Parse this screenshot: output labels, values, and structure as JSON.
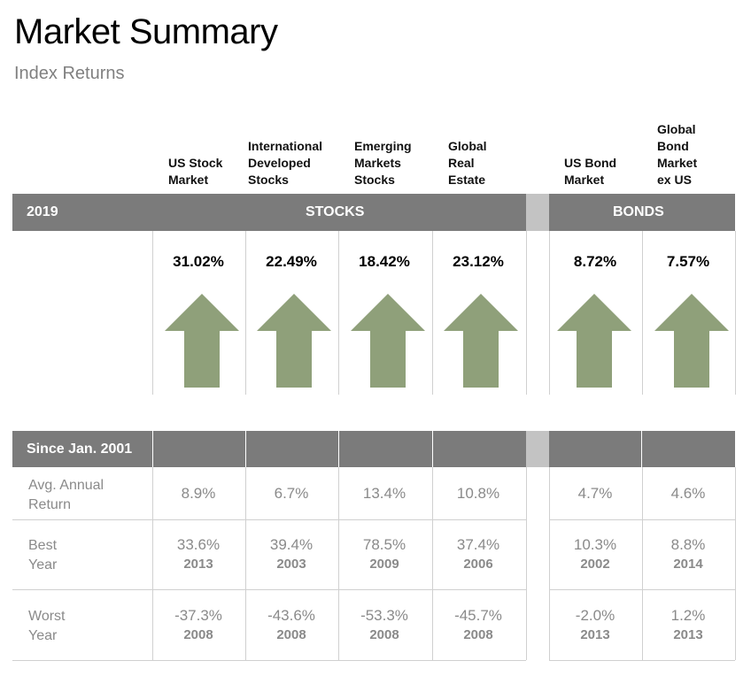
{
  "header": {
    "title": "Market Summary",
    "subtitle": "Index Returns"
  },
  "columns": [
    {
      "label": "US Stock\nMarket"
    },
    {
      "label": "International\nDeveloped\nStocks"
    },
    {
      "label": "Emerging\nMarkets\nStocks"
    },
    {
      "label": "Global\nReal\nEstate"
    },
    {
      "label": "US Bond\nMarket"
    },
    {
      "label": "Global\nBond\nMarket\nex US"
    }
  ],
  "band_2019": {
    "year": "2019",
    "stocks": "STOCKS",
    "bonds": "BONDS"
  },
  "returns_2019": [
    "31.02%",
    "22.49%",
    "18.42%",
    "23.12%",
    "8.72%",
    "7.57%"
  ],
  "arrow_color": "#8fa07a",
  "since": {
    "label": "Since Jan. 2001",
    "rows": [
      {
        "label": "Avg. Annual\nReturn",
        "values": [
          "8.9%",
          "6.7%",
          "13.4%",
          "10.8%",
          "4.7%",
          "4.6%"
        ]
      },
      {
        "label": "Best\nYear",
        "values": [
          "33.6%",
          "39.4%",
          "78.5%",
          "37.4%",
          "10.3%",
          "8.8%"
        ],
        "years": [
          "2013",
          "2003",
          "2009",
          "2006",
          "2002",
          "2014"
        ]
      },
      {
        "label": "Worst\nYear",
        "values": [
          "-37.3%",
          "-43.6%",
          "-53.3%",
          "-45.7%",
          "-2.0%",
          "1.2%"
        ],
        "years": [
          "2008",
          "2008",
          "2008",
          "2008",
          "2013",
          "2013"
        ]
      }
    ]
  }
}
